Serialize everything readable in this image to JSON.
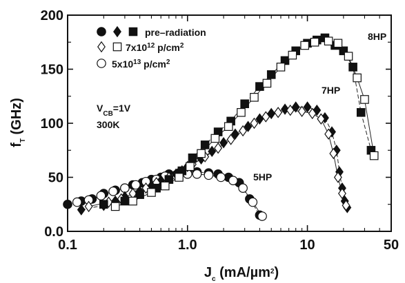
{
  "chart_data": {
    "type": "scatter",
    "x_scale": "log",
    "xlim": [
      0.1,
      50
    ],
    "ylim": [
      0,
      200
    ],
    "x_ticks": [
      "0.1",
      "1.0",
      "10",
      "50"
    ],
    "y_ticks": [
      "0.0",
      "50",
      "100",
      "150",
      "200"
    ],
    "xlabel": {
      "main": "J",
      "sub": "c",
      "rest": " (mA/µm",
      "sup": "2",
      "end": ")"
    },
    "ylabel": {
      "main": "f",
      "sub": "T",
      "rest": " (GHz)"
    },
    "legend": {
      "position": "top-left",
      "entries": [
        {
          "text": "pre–radiation",
          "markers": [
            "filled-circle",
            "filled-diamond",
            "filled-square"
          ]
        },
        {
          "text_main": "7x10",
          "text_sup": "12",
          "text_rest": " p/cm",
          "text_sup2": "2",
          "markers": [
            "open-diamond",
            "open-square"
          ]
        },
        {
          "text_main": "5x10",
          "text_sup": "13",
          "text_rest": " p/cm",
          "text_sup2": "2",
          "markers": [
            "open-circle"
          ]
        }
      ]
    },
    "annotations": [
      {
        "text_main": "V",
        "text_sub": "CB",
        "text_rest": "=1V"
      },
      {
        "text_main": "300K"
      }
    ],
    "series_labels": [
      "5HP",
      "7HP",
      "8HP"
    ],
    "series": [
      {
        "label": "5HP",
        "condition": "pre-radiation",
        "marker": "circle",
        "filled": true,
        "points": [
          [
            0.1,
            25
          ],
          [
            0.13,
            28
          ],
          [
            0.16,
            30
          ],
          [
            0.2,
            35
          ],
          [
            0.25,
            38
          ],
          [
            0.3,
            40
          ],
          [
            0.35,
            43
          ],
          [
            0.42,
            45
          ],
          [
            0.5,
            48
          ],
          [
            0.6,
            50
          ],
          [
            0.7,
            53
          ],
          [
            0.85,
            54
          ],
          [
            1.0,
            55
          ],
          [
            1.2,
            55
          ],
          [
            1.5,
            54
          ],
          [
            1.8,
            53
          ],
          [
            2.2,
            50
          ],
          [
            2.7,
            45
          ],
          [
            3.3,
            30
          ],
          [
            4.0,
            15
          ]
        ]
      },
      {
        "label": "5HP",
        "condition": "5x10^13 p/cm^2",
        "marker": "circle",
        "filled": false,
        "points": [
          [
            0.12,
            27
          ],
          [
            0.15,
            29
          ],
          [
            0.19,
            33
          ],
          [
            0.24,
            37
          ],
          [
            0.3,
            40
          ],
          [
            0.37,
            43
          ],
          [
            0.45,
            46
          ],
          [
            0.55,
            48
          ],
          [
            0.65,
            51
          ],
          [
            0.8,
            52
          ],
          [
            1.0,
            53
          ],
          [
            1.2,
            53
          ],
          [
            1.5,
            52
          ],
          [
            1.9,
            50
          ],
          [
            2.4,
            47
          ],
          [
            2.9,
            40
          ],
          [
            3.5,
            27
          ],
          [
            4.2,
            14
          ]
        ]
      },
      {
        "label": "7HP",
        "condition": "pre-radiation",
        "marker": "diamond",
        "filled": true,
        "points": [
          [
            0.13,
            20
          ],
          [
            0.2,
            24
          ],
          [
            0.25,
            28
          ],
          [
            0.3,
            32
          ],
          [
            0.4,
            37
          ],
          [
            0.5,
            42
          ],
          [
            0.6,
            47
          ],
          [
            0.8,
            53
          ],
          [
            1.0,
            60
          ],
          [
            1.3,
            67
          ],
          [
            1.6,
            74
          ],
          [
            2.0,
            82
          ],
          [
            2.5,
            90
          ],
          [
            3.2,
            97
          ],
          [
            4.0,
            104
          ],
          [
            5.0,
            109
          ],
          [
            6.5,
            113
          ],
          [
            8.0,
            115
          ],
          [
            10,
            115
          ],
          [
            12,
            112
          ],
          [
            14,
            105
          ],
          [
            16,
            92
          ],
          [
            17.5,
            75
          ],
          [
            18.5,
            55
          ],
          [
            19.5,
            40
          ],
          [
            20.5,
            28
          ],
          [
            21.5,
            22
          ]
        ]
      },
      {
        "label": "7HP",
        "condition": "7x10^12 p/cm^2",
        "marker": "diamond",
        "filled": false,
        "points": [
          [
            0.15,
            23
          ],
          [
            0.22,
            27
          ],
          [
            0.28,
            30
          ],
          [
            0.35,
            35
          ],
          [
            0.45,
            40
          ],
          [
            0.55,
            45
          ],
          [
            0.7,
            50
          ],
          [
            0.9,
            56
          ],
          [
            1.1,
            62
          ],
          [
            1.4,
            69
          ],
          [
            1.8,
            77
          ],
          [
            2.3,
            85
          ],
          [
            2.9,
            93
          ],
          [
            3.6,
            100
          ],
          [
            4.5,
            106
          ],
          [
            5.7,
            110
          ],
          [
            7.2,
            112
          ],
          [
            9.0,
            111
          ],
          [
            11,
            109
          ],
          [
            13,
            104
          ],
          [
            15,
            90
          ],
          [
            16.5,
            72
          ],
          [
            18,
            50
          ],
          [
            19.5,
            35
          ],
          [
            21,
            24
          ]
        ]
      },
      {
        "label": "8HP",
        "condition": "pre-radiation",
        "marker": "square",
        "filled": true,
        "points": [
          [
            0.2,
            25
          ],
          [
            0.3,
            28
          ],
          [
            0.4,
            34
          ],
          [
            0.55,
            40
          ],
          [
            0.7,
            48
          ],
          [
            0.9,
            56
          ],
          [
            1.1,
            68
          ],
          [
            1.4,
            80
          ],
          [
            1.8,
            92
          ],
          [
            2.3,
            102
          ],
          [
            3.0,
            118
          ],
          [
            4.0,
            134
          ],
          [
            5.0,
            145
          ],
          [
            6.5,
            158
          ],
          [
            8.0,
            167
          ],
          [
            10,
            174
          ],
          [
            12,
            177
          ],
          [
            14,
            179
          ],
          [
            17,
            172
          ],
          [
            20,
            167
          ],
          [
            24,
            152
          ],
          [
            28,
            110
          ],
          [
            34,
            75
          ]
        ]
      },
      {
        "label": "8HP",
        "condition": "7x10^12 p/cm^2",
        "marker": "square",
        "filled": false,
        "points": [
          [
            0.25,
            23
          ],
          [
            0.35,
            28
          ],
          [
            0.5,
            36
          ],
          [
            0.65,
            42
          ],
          [
            0.85,
            50
          ],
          [
            1.05,
            60
          ],
          [
            1.3,
            72
          ],
          [
            1.7,
            86
          ],
          [
            2.2,
            97
          ],
          [
            2.8,
            110
          ],
          [
            3.6,
            124
          ],
          [
            4.6,
            137
          ],
          [
            6.0,
            152
          ],
          [
            7.5,
            163
          ],
          [
            9.5,
            172
          ],
          [
            11.5,
            175
          ],
          [
            15,
            176
          ],
          [
            18,
            174
          ],
          [
            22,
            162
          ],
          [
            26,
            142
          ],
          [
            30,
            122
          ],
          [
            36,
            70
          ]
        ]
      }
    ]
  }
}
